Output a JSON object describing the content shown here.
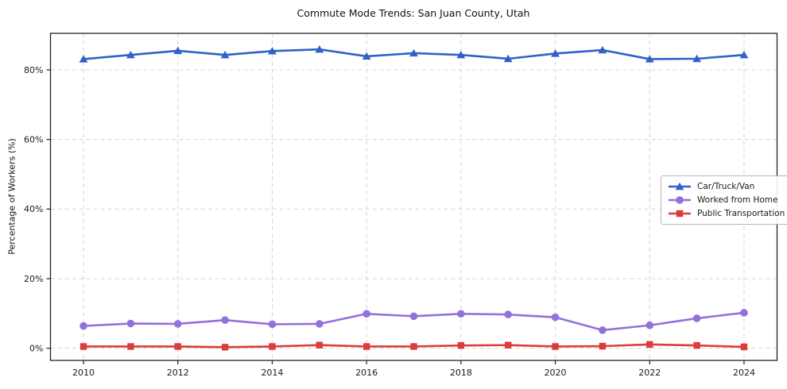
{
  "chart_data": {
    "type": "line",
    "title": "Commute Mode Trends: San Juan County, Utah",
    "xlabel": "",
    "ylabel": "Percentage of Workers (%)",
    "x": [
      2010,
      2011,
      2012,
      2013,
      2014,
      2015,
      2016,
      2017,
      2018,
      2019,
      2020,
      2021,
      2022,
      2023,
      2024
    ],
    "series": [
      {
        "name": "Car/Truck/Van",
        "color": "#2f62c8",
        "marker": "triangle",
        "values": [
          83.1,
          84.3,
          85.5,
          84.3,
          85.4,
          85.9,
          83.9,
          84.8,
          84.3,
          83.2,
          84.7,
          85.7,
          83.1,
          83.2,
          84.3
        ]
      },
      {
        "name": "Worked from Home",
        "color": "#9370db",
        "marker": "circle",
        "values": [
          6.4,
          7.1,
          7.0,
          8.1,
          6.9,
          7.0,
          9.9,
          9.2,
          9.9,
          9.7,
          8.9,
          5.2,
          6.6,
          8.6,
          10.2
        ]
      },
      {
        "name": "Public Transportation",
        "color": "#dc3c3c",
        "marker": "square",
        "values": [
          0.5,
          0.5,
          0.5,
          0.3,
          0.5,
          0.9,
          0.5,
          0.5,
          0.8,
          0.9,
          0.5,
          0.6,
          1.1,
          0.8,
          0.4
        ]
      }
    ],
    "x_ticks": [
      2010,
      2012,
      2014,
      2016,
      2018,
      2020,
      2022,
      2024
    ],
    "y_ticks": [
      0,
      20,
      40,
      60,
      80
    ],
    "y_tick_suffix": "%",
    "xlim": [
      2009.3,
      2024.7
    ],
    "ylim": [
      -3.5,
      90.5
    ],
    "grid": true,
    "grid_style": "dashed",
    "legend_position": "center-right",
    "colors": {
      "background": "#ffffff",
      "spine": "#222222",
      "grid": "#d4d4d4",
      "tick_label": "#1a1a1a"
    }
  }
}
